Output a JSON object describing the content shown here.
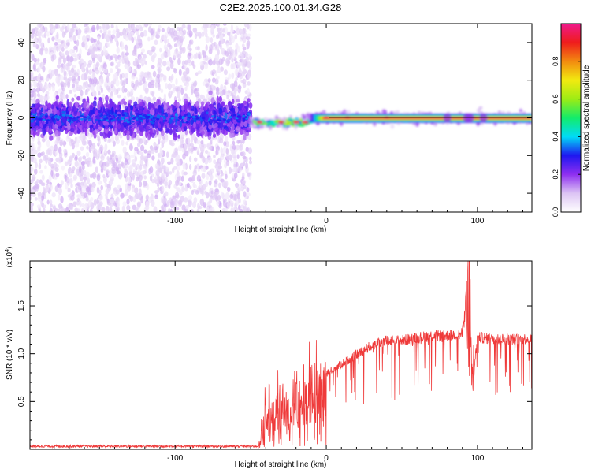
{
  "title": "C2E2.2025.100.01.34.G28",
  "chart_data": [
    {
      "type": "heatmap",
      "xlabel": "Height of straight line (km)",
      "ylabel": "Frequency (Hz)",
      "xlim": [
        -196,
        136
      ],
      "ylim": [
        -50,
        50
      ],
      "xticks": [
        -100,
        0,
        100
      ],
      "yticks": [
        -40,
        -20,
        0,
        20,
        40
      ],
      "colorbar": {
        "label": "Normalized spectral amplitude",
        "range": [
          0.0,
          1.0
        ],
        "ticks": [
          "0.0",
          "0.2",
          "0.4",
          "0.6",
          "0.8"
        ],
        "colors": [
          "#ffffff",
          "#dcc4f4",
          "#8e2ff0",
          "#1e17f0",
          "#00dcf6",
          "#13ec6a",
          "#9dec14",
          "#f2ea10",
          "#f28a10",
          "#ef1c1c",
          "#ef1a8c"
        ]
      },
      "regions": [
        {
          "label": "noise",
          "x_range": [
            -196,
            -50
          ],
          "freq_center": 0,
          "freq_spread": 50
        },
        {
          "label": "signal",
          "x_range": [
            -50,
            136
          ],
          "freq_center": 0,
          "freq_spread": 3
        }
      ]
    },
    {
      "type": "line",
      "xlabel": "Height of straight line (km)",
      "ylabel": "SNR (10 * v/v)",
      "y_multiplier": "(x10^4)",
      "xlim": [
        -196,
        136
      ],
      "ylim": [
        0,
        1.97
      ],
      "xticks": [
        -100,
        0,
        100
      ],
      "yticks": [
        "0.5",
        "1.0",
        "1.5"
      ],
      "series": [
        {
          "color": "#ef3a3a",
          "x": [
            -196,
            -150,
            -100,
            -60,
            -45,
            -40,
            -35,
            -30,
            -25,
            -20,
            -15,
            -10,
            -5,
            0,
            10,
            20,
            30,
            40,
            50,
            60,
            70,
            80,
            90,
            94,
            96,
            100,
            110,
            120,
            136
          ],
          "y": [
            0.02,
            0.02,
            0.02,
            0.02,
            0.02,
            0.45,
            0.4,
            0.6,
            0.45,
            0.7,
            0.55,
            0.75,
            0.7,
            0.8,
            0.9,
            1.0,
            1.1,
            1.15,
            1.15,
            1.18,
            1.2,
            1.2,
            1.22,
            1.9,
            0.6,
            1.18,
            1.17,
            1.16,
            1.17
          ]
        }
      ]
    }
  ]
}
